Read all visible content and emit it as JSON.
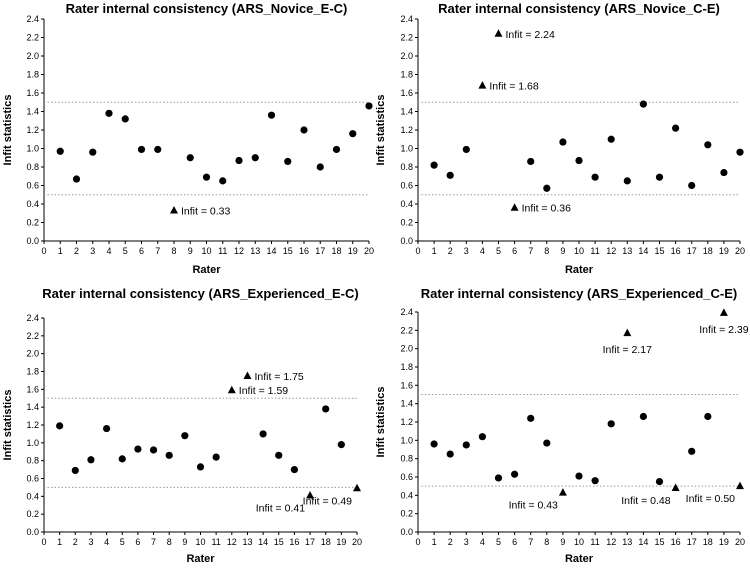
{
  "chart_data": [
    {
      "type": "scatter",
      "title": "Rater internal consistency (ARS_Novice_E-C)",
      "xlabel": "Rater",
      "ylabel": "Infit statistics",
      "xlim": [
        0,
        20
      ],
      "ylim": [
        0,
        2.4
      ],
      "xticks": [
        "0",
        "1",
        "2",
        "3",
        "4",
        "5",
        "6",
        "7",
        "8",
        "9",
        "10",
        "11",
        "12",
        "13",
        "14",
        "15",
        "16",
        "17",
        "18",
        "19",
        "20"
      ],
      "yticks": [
        "0.0",
        "0.2",
        "0.4",
        "0.6",
        "0.8",
        "1.0",
        "1.2",
        "1.4",
        "1.6",
        "1.8",
        "2.0",
        "2.2",
        "2.4"
      ],
      "reference_lines": [
        0.5,
        1.5
      ],
      "grid": false,
      "points": [
        {
          "x": 1,
          "y": 0.97,
          "marker": "circle"
        },
        {
          "x": 2,
          "y": 0.67,
          "marker": "circle"
        },
        {
          "x": 3,
          "y": 0.96,
          "marker": "circle"
        },
        {
          "x": 4,
          "y": 1.38,
          "marker": "circle"
        },
        {
          "x": 5,
          "y": 1.32,
          "marker": "circle"
        },
        {
          "x": 6,
          "y": 0.99,
          "marker": "circle"
        },
        {
          "x": 7,
          "y": 0.99,
          "marker": "circle"
        },
        {
          "x": 8,
          "y": 0.33,
          "marker": "triangle",
          "label": "Infit = 0.33",
          "labelPos": "right"
        },
        {
          "x": 9,
          "y": 0.9,
          "marker": "circle"
        },
        {
          "x": 10,
          "y": 0.69,
          "marker": "circle"
        },
        {
          "x": 11,
          "y": 0.65,
          "marker": "circle"
        },
        {
          "x": 12,
          "y": 0.87,
          "marker": "circle"
        },
        {
          "x": 13,
          "y": 0.9,
          "marker": "circle"
        },
        {
          "x": 14,
          "y": 1.36,
          "marker": "circle"
        },
        {
          "x": 15,
          "y": 0.86,
          "marker": "circle"
        },
        {
          "x": 16,
          "y": 1.2,
          "marker": "circle"
        },
        {
          "x": 17,
          "y": 0.8,
          "marker": "circle"
        },
        {
          "x": 18,
          "y": 0.99,
          "marker": "circle"
        },
        {
          "x": 19,
          "y": 1.16,
          "marker": "circle"
        },
        {
          "x": 20,
          "y": 1.46,
          "marker": "circle"
        }
      ]
    },
    {
      "type": "scatter",
      "title": "Rater internal consistency (ARS_Novice_C-E)",
      "xlabel": "Rater",
      "ylabel": "Infit statistics",
      "xlim": [
        0,
        20
      ],
      "ylim": [
        0,
        2.4
      ],
      "xticks": [
        "0",
        "1",
        "2",
        "3",
        "4",
        "5",
        "6",
        "7",
        "8",
        "9",
        "10",
        "11",
        "12",
        "13",
        "14",
        "15",
        "16",
        "17",
        "18",
        "19",
        "20"
      ],
      "yticks": [
        "0.0",
        "0.2",
        "0.4",
        "0.6",
        "0.8",
        "1.0",
        "1.2",
        "1.4",
        "1.6",
        "1.8",
        "2.0",
        "2.2",
        "2.4"
      ],
      "reference_lines": [
        0.5,
        1.5
      ],
      "grid": false,
      "points": [
        {
          "x": 1,
          "y": 0.82,
          "marker": "circle"
        },
        {
          "x": 2,
          "y": 0.71,
          "marker": "circle"
        },
        {
          "x": 3,
          "y": 0.99,
          "marker": "circle"
        },
        {
          "x": 4,
          "y": 1.68,
          "marker": "triangle",
          "label": "Infit = 1.68",
          "labelPos": "right"
        },
        {
          "x": 5,
          "y": 2.24,
          "marker": "triangle",
          "label": "Infit = 2.24",
          "labelPos": "right"
        },
        {
          "x": 6,
          "y": 0.36,
          "marker": "triangle",
          "label": "Infit = 0.36",
          "labelPos": "right"
        },
        {
          "x": 7,
          "y": 0.86,
          "marker": "circle"
        },
        {
          "x": 8,
          "y": 0.57,
          "marker": "circle"
        },
        {
          "x": 9,
          "y": 1.07,
          "marker": "circle"
        },
        {
          "x": 10,
          "y": 0.87,
          "marker": "circle"
        },
        {
          "x": 11,
          "y": 0.69,
          "marker": "circle"
        },
        {
          "x": 12,
          "y": 1.1,
          "marker": "circle"
        },
        {
          "x": 13,
          "y": 0.65,
          "marker": "circle"
        },
        {
          "x": 14,
          "y": 1.48,
          "marker": "circle"
        },
        {
          "x": 15,
          "y": 0.69,
          "marker": "circle"
        },
        {
          "x": 16,
          "y": 1.22,
          "marker": "circle"
        },
        {
          "x": 17,
          "y": 0.6,
          "marker": "circle"
        },
        {
          "x": 18,
          "y": 1.04,
          "marker": "circle"
        },
        {
          "x": 19,
          "y": 0.74,
          "marker": "circle"
        },
        {
          "x": 20,
          "y": 0.96,
          "marker": "circle"
        }
      ]
    },
    {
      "type": "scatter",
      "title": "Rater internal consistency (ARS_Experienced_E-C)",
      "xlabel": "Rater",
      "ylabel": "Infit statistics",
      "xlim": [
        0,
        20
      ],
      "ylim": [
        0,
        2.4
      ],
      "xticks": [
        "0",
        "1",
        "2",
        "3",
        "4",
        "5",
        "6",
        "7",
        "8",
        "9",
        "10",
        "11",
        "12",
        "13",
        "14",
        "15",
        "16",
        "17",
        "18",
        "19",
        "20"
      ],
      "yticks": [
        "0.0",
        "0.2",
        "0.4",
        "0.6",
        "0.8",
        "1.0",
        "1.2",
        "1.4",
        "1.6",
        "1.8",
        "2.0",
        "2.2",
        "2.4"
      ],
      "reference_lines": [
        0.5,
        1.5
      ],
      "grid": false,
      "points": [
        {
          "x": 1,
          "y": 1.19,
          "marker": "circle"
        },
        {
          "x": 2,
          "y": 0.69,
          "marker": "circle"
        },
        {
          "x": 3,
          "y": 0.81,
          "marker": "circle"
        },
        {
          "x": 4,
          "y": 1.16,
          "marker": "circle"
        },
        {
          "x": 5,
          "y": 0.82,
          "marker": "circle"
        },
        {
          "x": 6,
          "y": 0.93,
          "marker": "circle"
        },
        {
          "x": 7,
          "y": 0.92,
          "marker": "circle"
        },
        {
          "x": 8,
          "y": 0.86,
          "marker": "circle"
        },
        {
          "x": 9,
          "y": 1.08,
          "marker": "circle"
        },
        {
          "x": 10,
          "y": 0.73,
          "marker": "circle"
        },
        {
          "x": 11,
          "y": 0.84,
          "marker": "circle"
        },
        {
          "x": 12,
          "y": 1.59,
          "marker": "triangle",
          "label": "Infit = 1.59",
          "labelPos": "right"
        },
        {
          "x": 13,
          "y": 1.75,
          "marker": "triangle",
          "label": "Infit = 1.75",
          "labelPos": "right"
        },
        {
          "x": 14,
          "y": 1.1,
          "marker": "circle"
        },
        {
          "x": 15,
          "y": 0.86,
          "marker": "circle"
        },
        {
          "x": 16,
          "y": 0.7,
          "marker": "circle"
        },
        {
          "x": 17,
          "y": 0.41,
          "marker": "triangle",
          "label": "Infit = 0.41",
          "labelPos": "below-left"
        },
        {
          "x": 18,
          "y": 1.38,
          "marker": "circle"
        },
        {
          "x": 19,
          "y": 0.98,
          "marker": "circle"
        },
        {
          "x": 20,
          "y": 0.49,
          "marker": "triangle",
          "label": "Infit = 0.49",
          "labelPos": "below-left"
        }
      ]
    },
    {
      "type": "scatter",
      "title": "Rater internal consistency (ARS_Experienced_C-E)",
      "xlabel": "Rater",
      "ylabel": "Infit statistics",
      "xlim": [
        0,
        20
      ],
      "ylim": [
        0,
        2.4
      ],
      "xticks": [
        "0",
        "1",
        "2",
        "3",
        "4",
        "5",
        "6",
        "7",
        "8",
        "9",
        "10",
        "11",
        "12",
        "13",
        "14",
        "15",
        "16",
        "17",
        "18",
        "19",
        "20"
      ],
      "yticks": [
        "0.0",
        "0.2",
        "0.4",
        "0.6",
        "0.8",
        "1.0",
        "1.2",
        "1.4",
        "1.6",
        "1.8",
        "2.0",
        "2.2",
        "2.4"
      ],
      "reference_lines": [
        0.5,
        1.5
      ],
      "grid": false,
      "points": [
        {
          "x": 1,
          "y": 0.96,
          "marker": "circle"
        },
        {
          "x": 2,
          "y": 0.85,
          "marker": "circle"
        },
        {
          "x": 3,
          "y": 0.95,
          "marker": "circle"
        },
        {
          "x": 4,
          "y": 1.04,
          "marker": "circle"
        },
        {
          "x": 5,
          "y": 0.59,
          "marker": "circle"
        },
        {
          "x": 6,
          "y": 0.63,
          "marker": "circle"
        },
        {
          "x": 7,
          "y": 1.24,
          "marker": "circle"
        },
        {
          "x": 8,
          "y": 0.97,
          "marker": "circle"
        },
        {
          "x": 9,
          "y": 0.43,
          "marker": "triangle",
          "label": "Infit = 0.43",
          "labelPos": "below-left"
        },
        {
          "x": 10,
          "y": 0.61,
          "marker": "circle"
        },
        {
          "x": 11,
          "y": 0.56,
          "marker": "circle"
        },
        {
          "x": 12,
          "y": 1.18,
          "marker": "circle"
        },
        {
          "x": 13,
          "y": 2.17,
          "marker": "triangle",
          "label": "Infit = 2.17",
          "labelPos": "below"
        },
        {
          "x": 14,
          "y": 1.26,
          "marker": "circle"
        },
        {
          "x": 15,
          "y": 0.55,
          "marker": "circle"
        },
        {
          "x": 16,
          "y": 0.48,
          "marker": "triangle",
          "label": "Infit = 0.48",
          "labelPos": "below-left"
        },
        {
          "x": 17,
          "y": 0.88,
          "marker": "circle"
        },
        {
          "x": 18,
          "y": 1.26,
          "marker": "circle"
        },
        {
          "x": 19,
          "y": 2.39,
          "marker": "triangle",
          "label": "Infit = 2.39",
          "labelPos": "below"
        },
        {
          "x": 20,
          "y": 0.5,
          "marker": "triangle",
          "label": "Infit = 0.50",
          "labelPos": "below-left"
        }
      ]
    }
  ]
}
